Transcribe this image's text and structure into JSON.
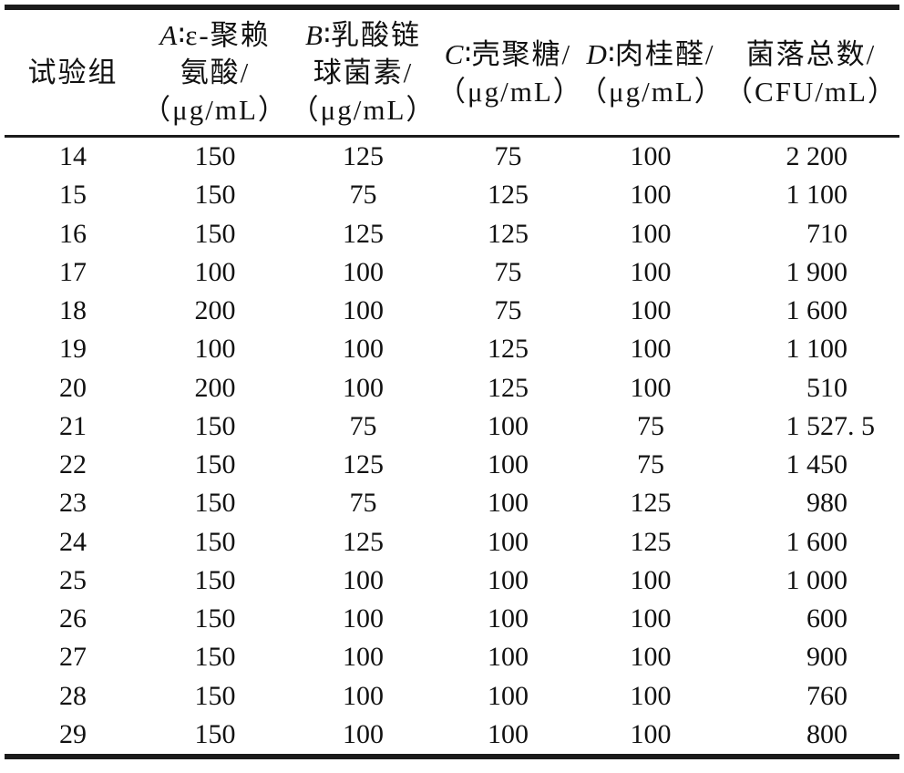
{
  "table": {
    "header": {
      "group": {
        "label": "试验组"
      },
      "colA": {
        "var": "A",
        "colon": "∶",
        "name1": "ε-聚赖",
        "name2": "氨酸/",
        "unit": "（μg/mL）"
      },
      "colB": {
        "var": "B",
        "colon": "∶",
        "name1": "乳酸链",
        "name2": "球菌素/",
        "unit": "（μg/mL）"
      },
      "colC": {
        "var": "C",
        "colon": "∶",
        "name1": "壳聚糖/",
        "unit": "（μg/mL）"
      },
      "colD": {
        "var": "D",
        "colon": "∶",
        "name1": "肉桂醛/",
        "unit": "（μg/mL）"
      },
      "colTotal": {
        "name1": "菌落总数/",
        "unit": "（CFU/mL）"
      }
    },
    "rows": [
      {
        "group": "14",
        "a": "150",
        "b": "125",
        "c": "75",
        "d": "100",
        "total": "2 200"
      },
      {
        "group": "15",
        "a": "150",
        "b": "75",
        "c": "125",
        "d": "100",
        "total": "1 100"
      },
      {
        "group": "16",
        "a": "150",
        "b": "125",
        "c": "125",
        "d": "100",
        "total": "710"
      },
      {
        "group": "17",
        "a": "100",
        "b": "100",
        "c": "75",
        "d": "100",
        "total": "1 900"
      },
      {
        "group": "18",
        "a": "200",
        "b": "100",
        "c": "75",
        "d": "100",
        "total": "1 600"
      },
      {
        "group": "19",
        "a": "100",
        "b": "100",
        "c": "125",
        "d": "100",
        "total": "1 100"
      },
      {
        "group": "20",
        "a": "200",
        "b": "100",
        "c": "125",
        "d": "100",
        "total": "510"
      },
      {
        "group": "21",
        "a": "150",
        "b": "75",
        "c": "100",
        "d": "75",
        "total": "1 527. 5"
      },
      {
        "group": "22",
        "a": "150",
        "b": "125",
        "c": "100",
        "d": "75",
        "total": "1 450"
      },
      {
        "group": "23",
        "a": "150",
        "b": "75",
        "c": "100",
        "d": "125",
        "total": "980"
      },
      {
        "group": "24",
        "a": "150",
        "b": "125",
        "c": "100",
        "d": "125",
        "total": "1 600"
      },
      {
        "group": "25",
        "a": "150",
        "b": "100",
        "c": "100",
        "d": "100",
        "total": "1 000"
      },
      {
        "group": "26",
        "a": "150",
        "b": "100",
        "c": "100",
        "d": "100",
        "total": "600"
      },
      {
        "group": "27",
        "a": "150",
        "b": "100",
        "c": "100",
        "d": "100",
        "total": "900"
      },
      {
        "group": "28",
        "a": "150",
        "b": "100",
        "c": "100",
        "d": "100",
        "total": "760"
      },
      {
        "group": "29",
        "a": "150",
        "b": "100",
        "c": "100",
        "d": "100",
        "total": "800"
      }
    ]
  },
  "colors": {
    "text": "#111111",
    "rule": "#1b1b1b",
    "background": "#ffffff"
  }
}
